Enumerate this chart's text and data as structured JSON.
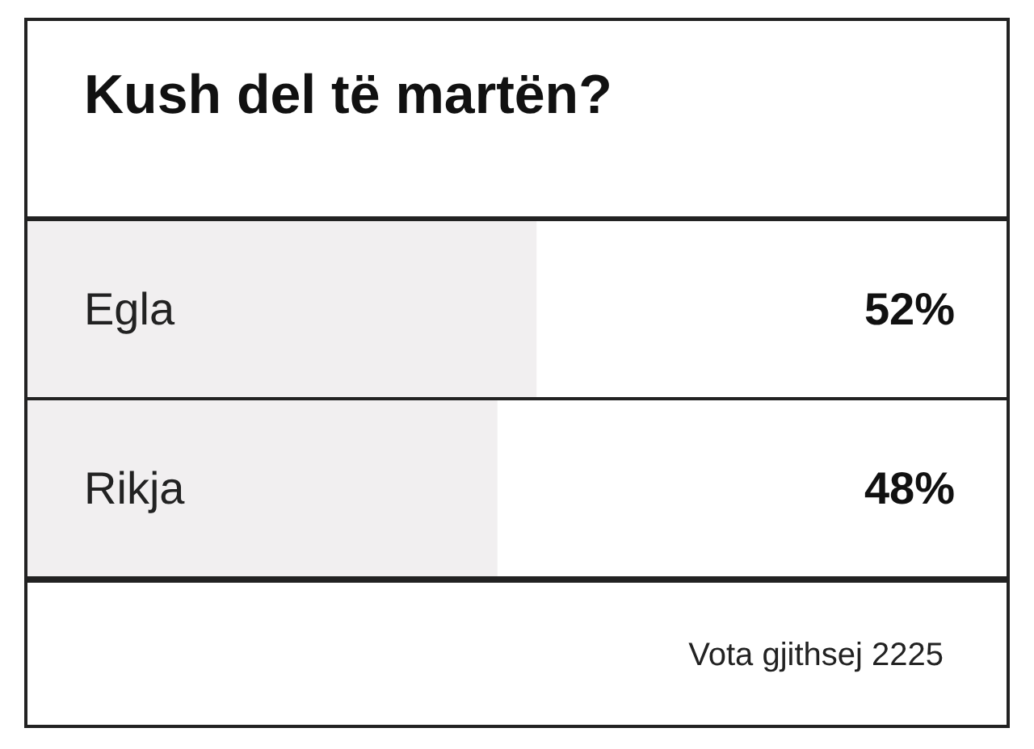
{
  "chart_data": {
    "type": "bar",
    "orientation": "horizontal",
    "title": "Kush del të martën?",
    "categories": [
      "Egla",
      "Rikja"
    ],
    "values": [
      52,
      48
    ],
    "color": "#f1eff0",
    "value_labels": [
      "52%",
      "48%"
    ],
    "xlim": [
      0,
      100
    ],
    "annotations": [
      "Vota gjithsej 2225"
    ]
  }
}
